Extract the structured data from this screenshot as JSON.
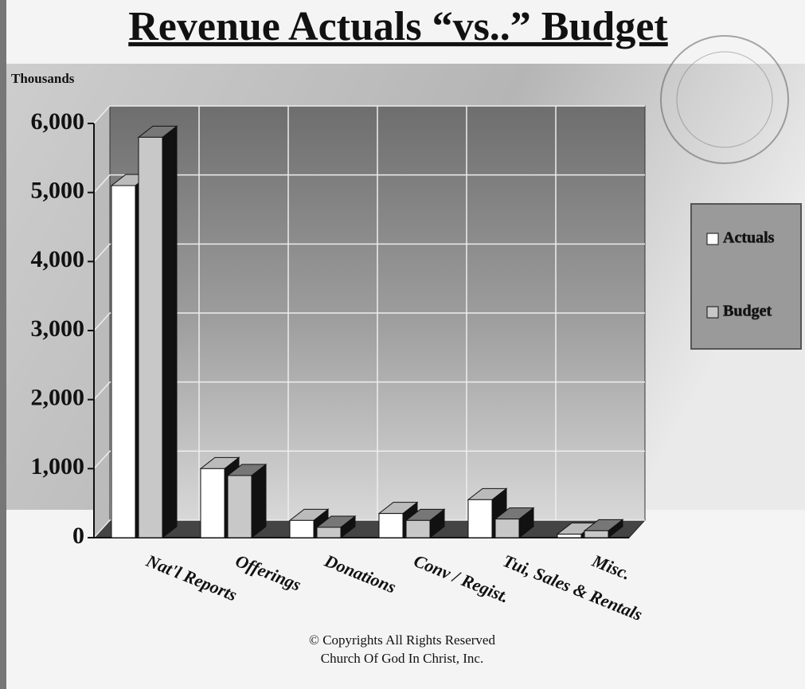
{
  "chart_data": {
    "type": "bar3d",
    "title": "Revenue Actuals “vs..” Budget",
    "y_axis_label": "Thousands",
    "categories": [
      "Nat'l Reports",
      "Offerings",
      "Donations",
      "Conv / Regist.",
      "Tui, Sales & Rentals",
      "Misc."
    ],
    "series": [
      {
        "name": "Actuals",
        "color": "#ffffff",
        "values": [
          5100,
          1000,
          250,
          350,
          550,
          50
        ]
      },
      {
        "name": "Budget",
        "color": "#c8c8c8",
        "values": [
          5800,
          900,
          150,
          250,
          270,
          100
        ]
      }
    ],
    "ylim": [
      0,
      6000
    ],
    "yticks": [
      0,
      {
        "value": 1000,
        "label": "1,000"
      },
      {
        "value": 2000,
        "label": "2,000"
      },
      {
        "value": 3000,
        "label": "3,000"
      },
      {
        "value": 4000,
        "label": "4,000"
      },
      {
        "value": 5000,
        "label": "5,000"
      },
      {
        "value": 6000,
        "label": "6,000"
      }
    ],
    "grid": true,
    "legend": "right",
    "annotations": [
      "© Copyrights All Rights Reserved",
      "Church Of God In Christ, Inc."
    ]
  }
}
